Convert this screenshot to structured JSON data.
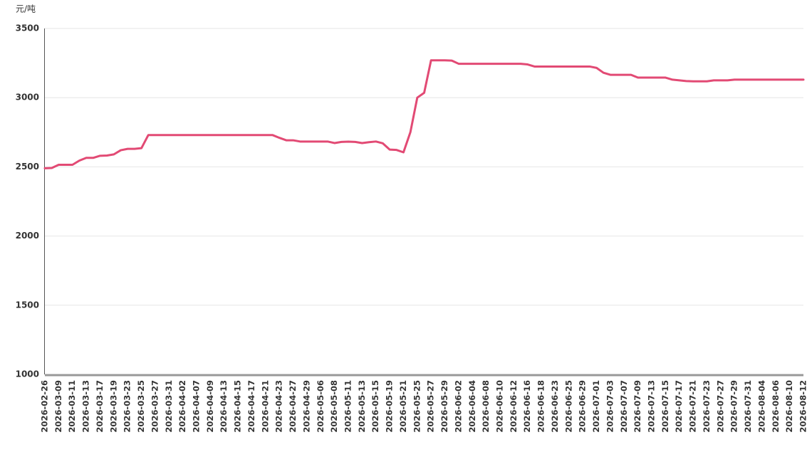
{
  "chart_data": {
    "type": "line",
    "y_unit": "元/吨",
    "categories": [
      "2026-02-26",
      null,
      "2026-03-09",
      null,
      "2026-03-11",
      null,
      "2026-03-13",
      null,
      "2026-03-17",
      null,
      "2026-03-19",
      null,
      "2026-03-23",
      null,
      "2026-03-25",
      null,
      "2026-03-27",
      null,
      "2026-03-31",
      null,
      "2026-04-02",
      null,
      "2026-04-07",
      null,
      "2026-04-09",
      null,
      "2026-04-13",
      null,
      "2026-04-15",
      null,
      "2026-04-17",
      null,
      "2026-04-21",
      null,
      "2026-04-23",
      null,
      "2026-04-27",
      null,
      "2026-04-29",
      null,
      "2026-05-06",
      null,
      "2026-05-08",
      null,
      "2026-05-11",
      null,
      "2026-05-13",
      null,
      "2026-05-15",
      null,
      "2026-05-19",
      null,
      "2026-05-21",
      null,
      "2026-05-25",
      null,
      "2026-05-27",
      null,
      "2026-05-29",
      null,
      "2026-06-02",
      null,
      "2026-06-04",
      null,
      "2026-06-08",
      null,
      "2026-06-10",
      null,
      "2026-06-12",
      null,
      "2026-06-16",
      null,
      "2026-06-18",
      null,
      "2026-06-23",
      null,
      "2026-06-25",
      null,
      "2026-06-29",
      null,
      "2026-07-01",
      null,
      "2026-07-03",
      null,
      "2026-07-07",
      null,
      "2026-07-09",
      null,
      "2026-07-13",
      null,
      "2026-07-15",
      null,
      "2026-07-17",
      null,
      "2026-07-21",
      null,
      "2026-07-23",
      null,
      "2026-07-27",
      null,
      "2026-07-29",
      null,
      "2026-07-31",
      null,
      "2026-08-04",
      null,
      "2026-08-06",
      null,
      "2026-08-10",
      null,
      "2026-08-12"
    ],
    "values": [
      2490,
      2492,
      2515,
      2515,
      2515,
      2545,
      2565,
      2565,
      2580,
      2582,
      2590,
      2620,
      2630,
      2630,
      2635,
      2730,
      2730,
      2730,
      2730,
      2730,
      2730,
      2730,
      2730,
      2730,
      2730,
      2730,
      2730,
      2730,
      2730,
      2730,
      2730,
      2730,
      2730,
      2730,
      2710,
      2692,
      2692,
      2683,
      2683,
      2683,
      2683,
      2683,
      2672,
      2680,
      2682,
      2680,
      2672,
      2678,
      2683,
      2670,
      2625,
      2622,
      2605,
      2750,
      3000,
      3035,
      3270,
      3270,
      3270,
      3268,
      3245,
      3245,
      3245,
      3245,
      3245,
      3245,
      3245,
      3245,
      3245,
      3245,
      3240,
      3225,
      3225,
      3225,
      3225,
      3225,
      3225,
      3225,
      3225,
      3225,
      3215,
      3180,
      3165,
      3165,
      3165,
      3165,
      3145,
      3145,
      3145,
      3145,
      3145,
      3130,
      3125,
      3120,
      3118,
      3118,
      3118,
      3125,
      3125,
      3125,
      3130,
      3130,
      3130,
      3130,
      3130,
      3130,
      3130,
      3130,
      3130,
      3130,
      3130
    ],
    "color": "#e24a74",
    "ylim": [
      1000,
      3500
    ],
    "yticks": [
      1000,
      1500,
      2000,
      2500,
      3000,
      3500
    ],
    "grid": true
  }
}
